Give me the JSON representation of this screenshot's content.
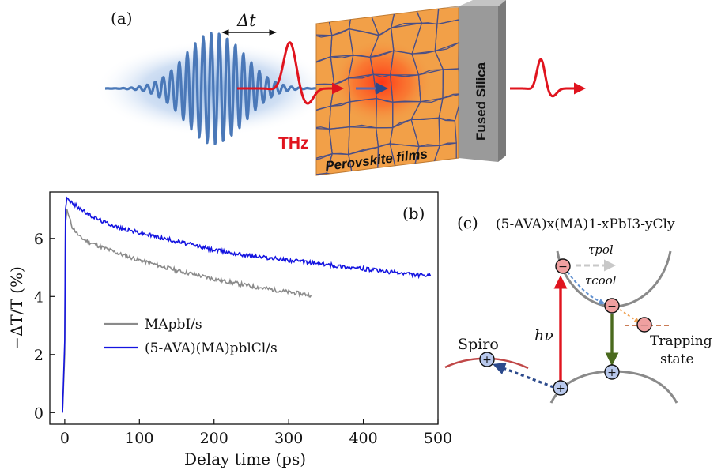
{
  "panel_a": {
    "label": "(a)",
    "delay_label": "Δt",
    "thz_label": "THz",
    "film_label": "Perovskite films",
    "substrate_label": "Fused Silica"
  },
  "panel_b": {
    "label": "(b)"
  },
  "panel_c": {
    "label": "(c)",
    "formula": "(5-AVA)x(MA)1-xPbI3-yCly",
    "tau_pol": "τpol",
    "tau_cool": "τcool",
    "hv": "hν",
    "spiro": "Spiro",
    "trapping_line1": "Trapping",
    "trapping_line2": "state",
    "electron_symbol": "−",
    "hole_symbol": "+"
  },
  "colors": {
    "optical_pulse": "#4a78b8",
    "thz_pulse": "#e0141e",
    "perovskite": "#f2a048",
    "silica": "#9a9a9a",
    "series_mapbi": "#8a8a8a",
    "series_ava": "#1414e0"
  },
  "chart_data": {
    "type": "line",
    "title": "",
    "xlabel": "Delay time (ps)",
    "ylabel": "−ΔT/T (%)",
    "xlim": [
      -20,
      500
    ],
    "ylim": [
      -0.4,
      7.6
    ],
    "xticks": [
      0,
      100,
      200,
      300,
      400,
      500
    ],
    "yticks": [
      0,
      2,
      4,
      6
    ],
    "legend_position": "center-left",
    "series": [
      {
        "name": "MApbI/s",
        "color": "#8a8a8a",
        "x": [
          -3,
          0,
          1,
          3,
          5,
          10,
          20,
          30,
          50,
          75,
          100,
          150,
          200,
          250,
          300,
          330
        ],
        "y": [
          0,
          2,
          6.5,
          7.0,
          6.8,
          6.4,
          6.05,
          5.9,
          5.7,
          5.45,
          5.25,
          4.9,
          4.6,
          4.35,
          4.15,
          4.05
        ]
      },
      {
        "name": "(5-AVA)(MA)pblCl/s",
        "color": "#1414e0",
        "x": [
          -3,
          0,
          1,
          3,
          5,
          10,
          20,
          30,
          50,
          75,
          100,
          150,
          200,
          250,
          300,
          350,
          400,
          450,
          490
        ],
        "y": [
          0,
          2.5,
          7.0,
          7.4,
          7.35,
          7.2,
          7.05,
          6.85,
          6.6,
          6.35,
          6.2,
          5.9,
          5.6,
          5.4,
          5.25,
          5.1,
          4.95,
          4.8,
          4.7
        ]
      }
    ]
  }
}
